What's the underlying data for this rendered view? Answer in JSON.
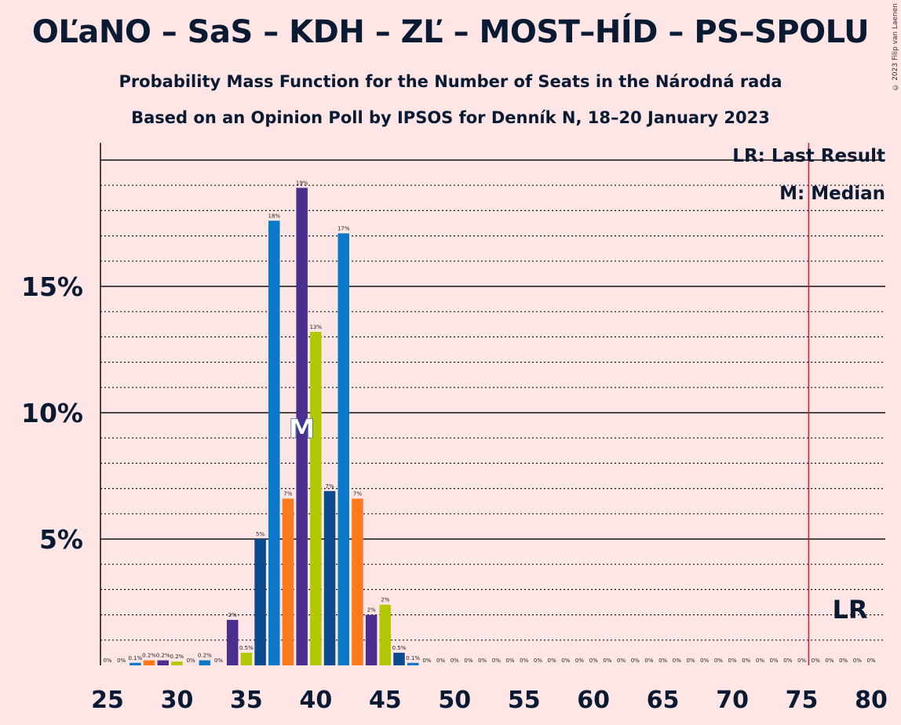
{
  "title": "OĽaNO – SaS – KDH – ZĽ – MOST–HÍD – PS–SPOLU",
  "subtitle": "Probability Mass Function for the Number of Seats in the Národná rada",
  "subtitle2": "Based on an Opinion Poll by IPSOS for Denník N, 18–20 January 2023",
  "copyright": "© 2023 Filip van Laenen",
  "legend_lr": "LR: Last Result",
  "legend_m": "M: Median",
  "colors": {
    "teal": "#0A79C9",
    "orange": "#FF7A1A",
    "purple": "#4B2F8F",
    "green": "#B2C800",
    "darkblue": "#0B4A8C",
    "lr_line": "#E8141E"
  },
  "chart_data": {
    "type": "bar",
    "x": [
      25,
      26,
      27,
      28,
      29,
      30,
      31,
      32,
      33,
      34,
      35,
      36,
      37,
      38,
      39,
      40,
      41,
      42,
      43,
      44,
      45,
      46,
      47,
      48,
      49,
      50,
      51,
      52,
      53,
      54,
      55,
      56,
      57,
      58,
      59,
      60,
      61,
      62,
      63,
      64,
      65,
      66,
      67,
      68,
      69,
      70,
      71,
      72,
      73,
      74,
      75,
      76,
      77,
      78,
      79,
      80
    ],
    "values": [
      0,
      0,
      0.1,
      0.2,
      0.2,
      0.15,
      0,
      0.2,
      0,
      1.8,
      0.5,
      5.0,
      17.6,
      6.6,
      18.9,
      13.2,
      6.9,
      17.1,
      6.6,
      2.0,
      2.4,
      0.5,
      0.1,
      0,
      0,
      0,
      0,
      0,
      0,
      0,
      0,
      0,
      0,
      0,
      0,
      0,
      0,
      0,
      0,
      0,
      0,
      0,
      0,
      0,
      0,
      0,
      0,
      0,
      0,
      0,
      0,
      0,
      0,
      0,
      0,
      0
    ],
    "labels": [
      "0%",
      "0%",
      "0.1%",
      "0.2%",
      "0.2%",
      "0.2%",
      "0%",
      "0.2%",
      "0%",
      "2%",
      "0.5%",
      "5%",
      "18%",
      "7%",
      "19%",
      "13%",
      "7%",
      "17%",
      "7%",
      "2%",
      "2%",
      "0.5%",
      "0.1%",
      "0%",
      "0%",
      "0%",
      "0%",
      "0%",
      "0%",
      "0%",
      "0%",
      "0%",
      "0%",
      "0%",
      "0%",
      "0%",
      "0%",
      "0%",
      "0%",
      "0%",
      "0%",
      "0%",
      "0%",
      "0%",
      "0%",
      "0%",
      "0%",
      "0%",
      "0%",
      "0%",
      "0%",
      "0%",
      "0%",
      "0%",
      "0%",
      "0%"
    ],
    "x_ticks": [
      "25",
      "30",
      "35",
      "40",
      "45",
      "50",
      "55",
      "60",
      "65",
      "70",
      "75",
      "80"
    ],
    "y_ticks": [
      "5%",
      "10%",
      "15%"
    ],
    "ylim": [
      0,
      21
    ],
    "median": 39,
    "median_label": "M",
    "last_result": 76,
    "last_result_label": "LR"
  }
}
